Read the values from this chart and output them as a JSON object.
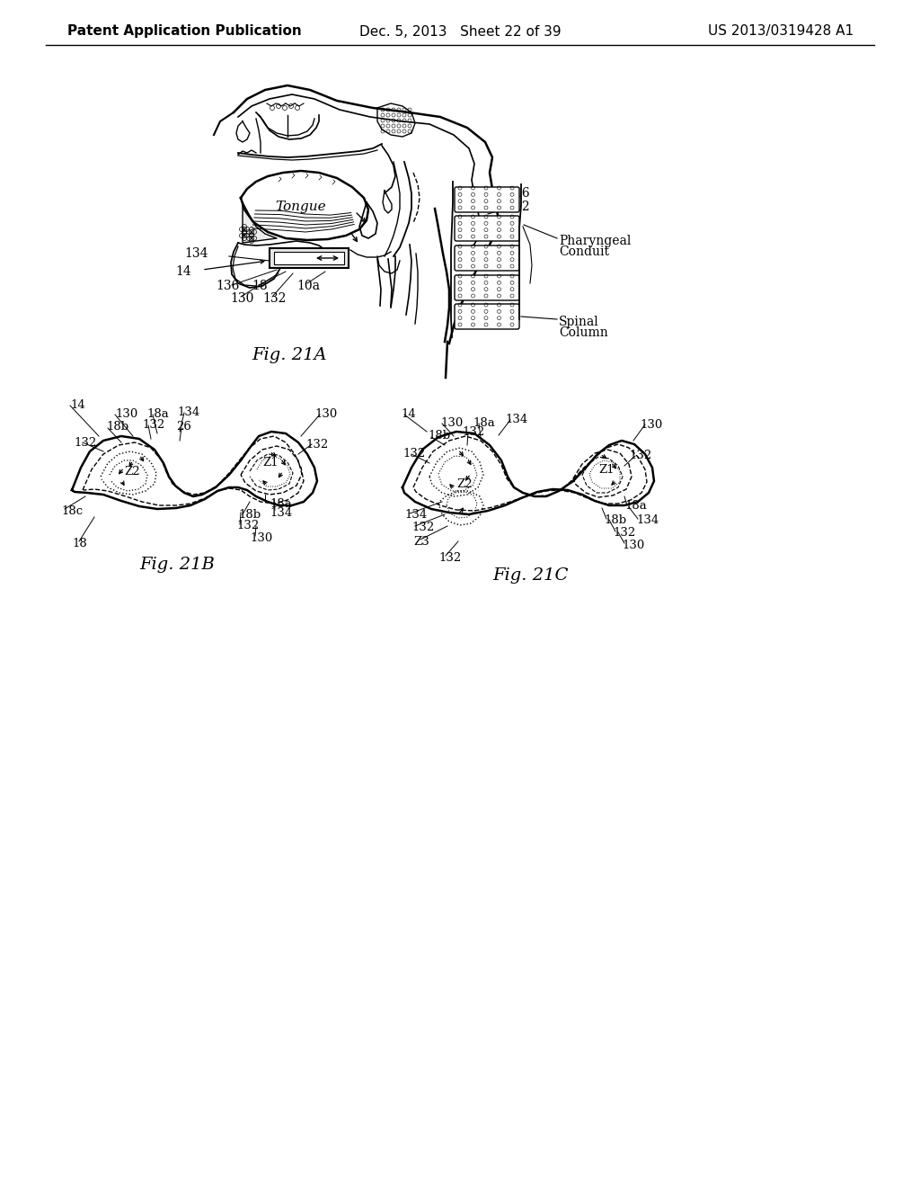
{
  "background_color": "#ffffff",
  "page_width": 10.24,
  "page_height": 13.2,
  "header": {
    "left": "Patent Application Publication",
    "center": "Dec. 5, 2013   Sheet 22 of 39",
    "right": "US 2013/0319428 A1",
    "fontsize": 11
  },
  "line_color": "#000000",
  "text_color": "#000000"
}
